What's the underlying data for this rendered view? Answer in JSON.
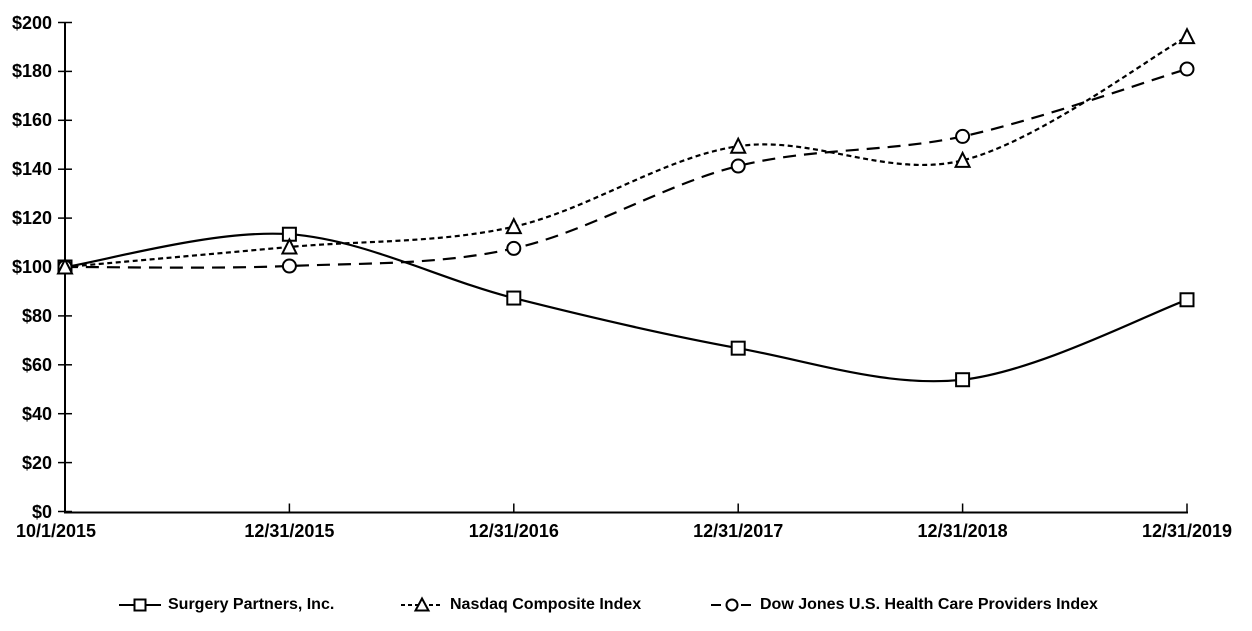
{
  "chart_data": {
    "type": "line",
    "title": "",
    "xlabel": "",
    "ylabel": "",
    "x_labels": [
      "10/1/2015",
      "12/31/2015",
      "12/31/2016",
      "12/31/2017",
      "12/31/2018",
      "12/31/2019"
    ],
    "y_tick_labels": [
      "$0",
      "$20",
      "$40",
      "$60",
      "$80",
      "$100",
      "$120",
      "$140",
      "$160",
      "$180",
      "$200"
    ],
    "ylim": [
      0,
      200
    ],
    "y_step": 20,
    "grid": false,
    "legend_position": "bottom",
    "line_color": "#000000",
    "marker_fill": "#ffffff",
    "background_color": "#ffffff",
    "series": [
      {
        "name": "Surgery Partners, Inc.",
        "marker": "square",
        "line_style": "solid",
        "values": [
          100,
          113.4,
          87.3,
          66.8,
          53.9,
          86.6
        ]
      },
      {
        "name": "Nasdaq Composite Index",
        "marker": "triangle",
        "line_style": "short-dash",
        "values": [
          100,
          108.2,
          116.5,
          149.4,
          143.6,
          194.2
        ]
      },
      {
        "name": "Dow Jones U.S. Health Care Providers Index",
        "marker": "circle",
        "line_style": "long-dash",
        "values": [
          100,
          100.4,
          107.6,
          141.3,
          153.4,
          181.0
        ]
      }
    ]
  }
}
